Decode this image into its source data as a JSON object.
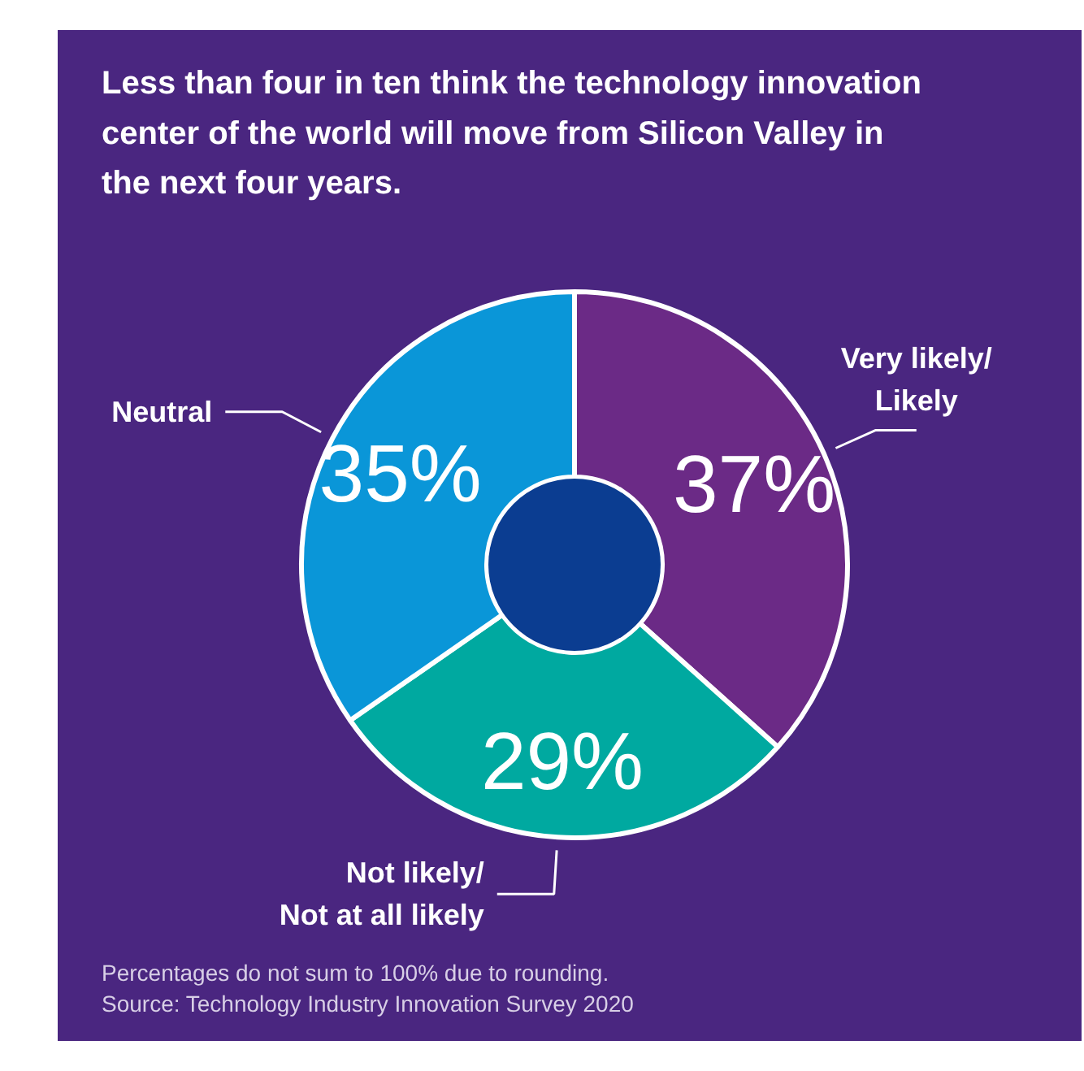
{
  "chart_data": {
    "type": "donut",
    "title": "Less than four in ten think the technology innovation center of the world will move from Silicon Valley in the next four years.",
    "categories": [
      "Very likely/Likely",
      "Not likely/Not at all likely",
      "Neutral"
    ],
    "values": [
      37,
      29,
      35
    ],
    "colors": [
      "#6b2a86",
      "#00a9a0",
      "#0a96d8"
    ],
    "value_labels": [
      "37%",
      "29%",
      "35%"
    ],
    "annotations": [
      "Percentages do not sum to 100% due to rounding.",
      "Source: Technology Industry Innovation Survey 2020"
    ]
  }
}
